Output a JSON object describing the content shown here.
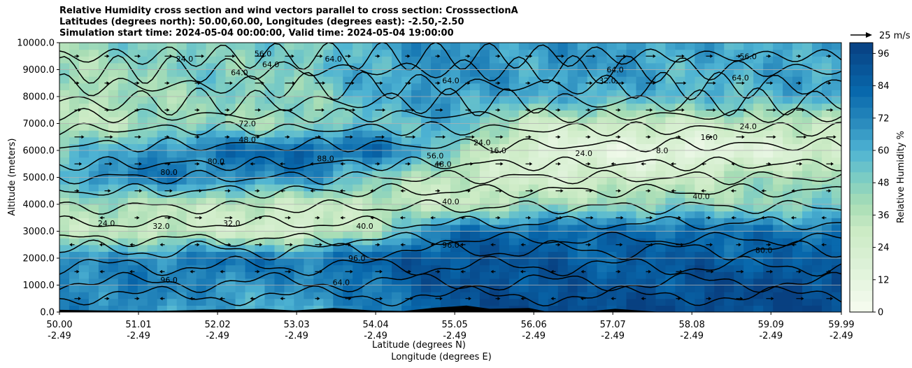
{
  "title_lines": [
    "Relative Humidity cross section and wind vectors parallel to cross section: CrosssectionA",
    "Latitudes (degrees north): 50.00,60.00, Longitudes (degrees east): -2.50,-2.50",
    "Simulation start time: 2024-05-04 00:00:00, Valid time: 2024-05-04 19:00:00"
  ],
  "chart_data": {
    "type": "heatmap",
    "xlabel_lines": [
      "Latitude (degrees N)",
      "Longitude (degrees E)"
    ],
    "ylabel": "Altitude (meters)",
    "x_tick_latitudes": [
      "50.00",
      "51.01",
      "52.02",
      "53.03",
      "54.04",
      "55.05",
      "56.06",
      "57.07",
      "58.08",
      "59.09",
      "59.99"
    ],
    "x_tick_longitudes": [
      "-2.49",
      "-2.49",
      "-2.49",
      "-2.49",
      "-2.49",
      "-2.49",
      "-2.49",
      "-2.49",
      "-2.49",
      "-2.49",
      "-2.49"
    ],
    "xlim": [
      50.0,
      59.99
    ],
    "y_ticks": [
      "0.0",
      "1000.0",
      "2000.0",
      "3000.0",
      "4000.0",
      "5000.0",
      "6000.0",
      "7000.0",
      "8000.0",
      "9000.0",
      "10000.0"
    ],
    "ylim": [
      0,
      10000
    ],
    "grid": "horizontal",
    "colorbar": {
      "label": "Relative Humidity %",
      "ticks": [
        "0",
        "12",
        "24",
        "36",
        "48",
        "60",
        "72",
        "84",
        "96"
      ],
      "range": [
        0,
        100
      ],
      "colormap": "GnBu"
    },
    "quiver_key": {
      "value": 25,
      "label": "25 m/s"
    },
    "contour_labels": [
      "8.0",
      "16.0",
      "24.0",
      "32.0",
      "40.0",
      "48.0",
      "56.0",
      "64.0",
      "72.0",
      "80.0",
      "88.0",
      "96.0"
    ],
    "rh_profile_description": {
      "x": [
        50.0,
        51.0,
        52.0,
        53.0,
        54.0,
        55.0,
        56.0,
        57.0,
        58.0,
        59.0,
        59.99
      ],
      "altitude": [
        0,
        1000,
        2000,
        3000,
        4000,
        5000,
        6000,
        7000,
        8000,
        9000,
        10000
      ],
      "rh": [
        [
          70,
          72,
          60,
          62,
          70,
          90,
          96,
          96,
          96,
          96,
          96
        ],
        [
          72,
          75,
          70,
          68,
          80,
          92,
          92,
          88,
          92,
          96,
          96
        ],
        [
          68,
          70,
          80,
          75,
          85,
          92,
          90,
          85,
          88,
          85,
          85
        ],
        [
          35,
          30,
          28,
          20,
          40,
          80,
          82,
          80,
          82,
          78,
          78
        ],
        [
          40,
          38,
          32,
          30,
          32,
          30,
          40,
          45,
          45,
          45,
          48
        ],
        [
          60,
          78,
          70,
          72,
          50,
          30,
          24,
          25,
          30,
          40,
          42
        ],
        [
          50,
          65,
          78,
          85,
          82,
          50,
          16,
          12,
          8,
          16,
          24
        ],
        [
          30,
          40,
          45,
          40,
          55,
          60,
          30,
          28,
          30,
          32,
          35
        ],
        [
          35,
          40,
          48,
          45,
          60,
          68,
          60,
          62,
          55,
          60,
          62
        ],
        [
          40,
          45,
          50,
          48,
          62,
          70,
          65,
          68,
          60,
          62,
          65
        ],
        [
          42,
          48,
          50,
          48,
          62,
          70,
          65,
          68,
          62,
          62,
          65
        ]
      ]
    },
    "contour_label_positions": [
      {
        "text": "80.0",
        "x": 51.4,
        "y": 5200
      },
      {
        "text": "88.0",
        "x": 53.4,
        "y": 5700
      },
      {
        "text": "80.0",
        "x": 52.0,
        "y": 5600
      },
      {
        "text": "48.0",
        "x": 52.4,
        "y": 6400
      },
      {
        "text": "72.0",
        "x": 52.4,
        "y": 7000
      },
      {
        "text": "56.0",
        "x": 54.8,
        "y": 5800
      },
      {
        "text": "48.0",
        "x": 54.9,
        "y": 5500
      },
      {
        "text": "24.0",
        "x": 55.4,
        "y": 6300
      },
      {
        "text": "16.0",
        "x": 55.6,
        "y": 6000
      },
      {
        "text": "24.0",
        "x": 56.7,
        "y": 5900
      },
      {
        "text": "8.0",
        "x": 57.7,
        "y": 6000
      },
      {
        "text": "16.0",
        "x": 58.3,
        "y": 6500
      },
      {
        "text": "24.0",
        "x": 58.8,
        "y": 6900
      },
      {
        "text": "40.0",
        "x": 58.2,
        "y": 4300
      },
      {
        "text": "40.0",
        "x": 55.0,
        "y": 4100
      },
      {
        "text": "32.0",
        "x": 52.2,
        "y": 3300
      },
      {
        "text": "32.0",
        "x": 51.3,
        "y": 3200
      },
      {
        "text": "24.0",
        "x": 50.6,
        "y": 3300
      },
      {
        "text": "40.0",
        "x": 53.9,
        "y": 3200
      },
      {
        "text": "96.0",
        "x": 55.0,
        "y": 2500
      },
      {
        "text": "96.0",
        "x": 53.8,
        "y": 2000
      },
      {
        "text": "80.0",
        "x": 59.0,
        "y": 2300
      },
      {
        "text": "64.0",
        "x": 53.6,
        "y": 1100
      },
      {
        "text": "96.0",
        "x": 51.4,
        "y": 1200
      },
      {
        "text": "56.0",
        "x": 52.6,
        "y": 9600
      },
      {
        "text": "64.0",
        "x": 53.5,
        "y": 9400
      },
      {
        "text": "64.0",
        "x": 52.7,
        "y": 9200
      },
      {
        "text": "64.0",
        "x": 52.3,
        "y": 8900
      },
      {
        "text": "64.0",
        "x": 55.0,
        "y": 8600
      },
      {
        "text": "64.0",
        "x": 57.1,
        "y": 9000
      },
      {
        "text": "56.0",
        "x": 58.8,
        "y": 9500
      },
      {
        "text": "64.0",
        "x": 58.7,
        "y": 8700
      },
      {
        "text": "32.0",
        "x": 57.0,
        "y": 8600
      },
      {
        "text": "24.0",
        "x": 51.6,
        "y": 9400
      }
    ]
  }
}
